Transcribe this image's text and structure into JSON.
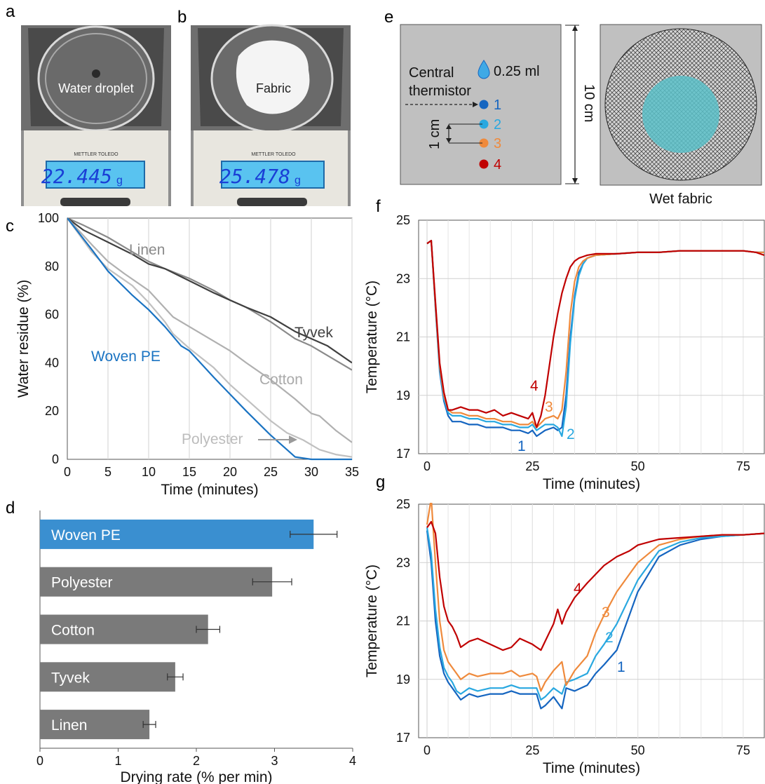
{
  "panels": {
    "a": {
      "label": "a",
      "photo_text": "Water droplet",
      "display": "22.445",
      "unit": "g",
      "brand": "METTLER TOLEDO"
    },
    "b": {
      "label": "b",
      "photo_text": "Fabric",
      "display": "25.478",
      "unit": "g",
      "brand": "METTLER TOLEDO"
    },
    "e": {
      "label": "e",
      "volume": "0.25 ml",
      "central_line1": "Central",
      "central_line2": "thermistor",
      "spacing": "1 cm",
      "size": "10 cm",
      "wet_fabric": "Wet fabric",
      "points": [
        {
          "n": "1",
          "color": "#1565c0"
        },
        {
          "n": "2",
          "color": "#29a8e0"
        },
        {
          "n": "3",
          "color": "#ef8a3c"
        },
        {
          "n": "4",
          "color": "#c00000"
        }
      ]
    }
  },
  "colors": {
    "woven_pe": "#1a73c2",
    "s1": "#1565c0",
    "s2": "#29a8e0",
    "s3": "#ef8a3c",
    "s4": "#c00000",
    "bar": "#7a7a7a",
    "photo_bg": "#bdbdbd"
  },
  "chart_data": [
    {
      "panel": "c",
      "type": "line",
      "xlabel": "Time (minutes)",
      "ylabel": "Water residue (%)",
      "xlim": [
        0,
        35
      ],
      "ylim": [
        0,
        100
      ],
      "xticks": [
        0,
        5,
        10,
        15,
        20,
        25,
        30,
        35
      ],
      "yticks": [
        0,
        20,
        40,
        60,
        80,
        100
      ],
      "grid": "vertical",
      "series": [
        {
          "name": "Linen",
          "color": "#8a8a8a",
          "x": [
            0,
            2,
            5,
            8,
            10,
            12,
            15,
            18,
            20,
            22,
            25,
            28,
            30,
            32,
            35
          ],
          "y": [
            100,
            97,
            92,
            86,
            82,
            79,
            75,
            70,
            66,
            63,
            57,
            50,
            47,
            43,
            37
          ]
        },
        {
          "name": "Tyvek",
          "color": "#404040",
          "x": [
            0,
            2,
            5,
            8,
            10,
            12,
            15,
            18,
            20,
            22,
            25,
            28,
            30,
            32,
            35
          ],
          "y": [
            100,
            95,
            90,
            85,
            81,
            79,
            74,
            69,
            66,
            63,
            59,
            53,
            50,
            47,
            40
          ]
        },
        {
          "name": "Cotton",
          "color": "#b0b0b0",
          "x": [
            0,
            3,
            5,
            7,
            10,
            13,
            15,
            18,
            20,
            22,
            25,
            28,
            30,
            31,
            33,
            35
          ],
          "y": [
            100,
            89,
            82,
            77,
            70,
            59,
            55,
            49,
            45,
            40,
            33,
            25,
            19,
            18,
            12,
            7
          ]
        },
        {
          "name": "Polyester",
          "color": "#c0c0c0",
          "x": [
            0,
            3,
            5,
            8,
            10,
            12,
            13,
            15,
            18,
            20,
            23,
            25,
            27,
            29,
            31,
            33,
            35
          ],
          "y": [
            100,
            86,
            79,
            72,
            65,
            57,
            52,
            46,
            38,
            31,
            22,
            16,
            11,
            8,
            4,
            2,
            1
          ]
        },
        {
          "name": "Woven PE",
          "color": "#1a73c2",
          "x": [
            0,
            3,
            5,
            8,
            10,
            12,
            14,
            15,
            18,
            20,
            22,
            25,
            27,
            28,
            30,
            35
          ],
          "y": [
            100,
            87,
            78,
            68,
            62,
            55,
            47,
            45,
            34,
            27,
            20,
            10,
            4,
            1,
            0,
            0
          ]
        }
      ],
      "annotation": "Polyester"
    },
    {
      "panel": "d",
      "type": "bar",
      "orientation": "horizontal",
      "xlabel": "Drying rate (% per min)",
      "xlim": [
        0,
        4
      ],
      "xticks": [
        0,
        1,
        2,
        3,
        4
      ],
      "categories": [
        "Woven PE",
        "Polyester",
        "Cotton",
        "Tyvek",
        "Linen"
      ],
      "values": [
        3.5,
        2.97,
        2.15,
        1.73,
        1.4
      ],
      "errors": [
        0.3,
        0.25,
        0.15,
        0.1,
        0.08
      ],
      "colors": [
        "#3a8fd0",
        "#7a7a7a",
        "#7a7a7a",
        "#7a7a7a",
        "#7a7a7a"
      ]
    },
    {
      "panel": "f",
      "type": "line",
      "xlabel": "Time (minutes)",
      "ylabel": "Temperature (°C)",
      "xlim": [
        -2,
        80
      ],
      "ylim": [
        17,
        25
      ],
      "xticks": [
        0,
        25,
        50,
        75
      ],
      "yticks": [
        17,
        19,
        21,
        23,
        25
      ],
      "grid": "both",
      "series": [
        {
          "name": "1",
          "color": "#1565c0",
          "x": [
            0,
            1,
            2,
            3,
            4,
            5,
            6,
            8,
            10,
            12,
            14,
            16,
            18,
            20,
            22,
            24,
            25,
            26,
            28,
            30,
            31,
            32,
            33,
            34,
            35,
            36,
            37,
            38,
            40,
            45,
            50,
            55,
            60,
            65,
            70,
            75,
            78,
            80
          ],
          "y": [
            24.2,
            24.3,
            22.0,
            19.8,
            18.8,
            18.3,
            18.1,
            18.1,
            18.0,
            18.0,
            17.9,
            17.9,
            17.9,
            17.8,
            17.8,
            17.7,
            17.8,
            17.6,
            17.8,
            17.9,
            17.8,
            17.9,
            19.0,
            21.0,
            22.4,
            23.2,
            23.5,
            23.7,
            23.8,
            23.85,
            23.9,
            23.9,
            23.95,
            23.95,
            23.95,
            23.95,
            23.9,
            23.9
          ]
        },
        {
          "name": "2",
          "color": "#29a8e0",
          "x": [
            0,
            1,
            2,
            3,
            4,
            5,
            6,
            8,
            10,
            12,
            14,
            16,
            18,
            20,
            22,
            24,
            25,
            26,
            28,
            30,
            31,
            32,
            33,
            34,
            35,
            36,
            37,
            38,
            40,
            45,
            50,
            55,
            60,
            65,
            70,
            75,
            78,
            80
          ],
          "y": [
            24.2,
            24.3,
            22.1,
            19.9,
            18.9,
            18.4,
            18.3,
            18.3,
            18.2,
            18.2,
            18.1,
            18.1,
            18.0,
            18.0,
            17.9,
            17.9,
            18.0,
            17.8,
            18.0,
            18.0,
            17.9,
            17.6,
            18.6,
            20.8,
            22.3,
            23.1,
            23.5,
            23.7,
            23.8,
            23.85,
            23.9,
            23.9,
            23.95,
            23.95,
            23.95,
            23.95,
            23.9,
            23.9
          ]
        },
        {
          "name": "3",
          "color": "#ef8a3c",
          "x": [
            0,
            1,
            2,
            3,
            4,
            5,
            6,
            8,
            10,
            12,
            14,
            16,
            18,
            20,
            22,
            24,
            25,
            26,
            28,
            30,
            31,
            32,
            33,
            34,
            35,
            36,
            37,
            38,
            40,
            45,
            50,
            55,
            60,
            65,
            70,
            75,
            78,
            80
          ],
          "y": [
            24.2,
            24.3,
            22.1,
            20.0,
            19.0,
            18.5,
            18.4,
            18.4,
            18.3,
            18.3,
            18.2,
            18.2,
            18.1,
            18.1,
            18.0,
            18.0,
            18.1,
            17.9,
            18.2,
            18.3,
            18.2,
            18.5,
            19.8,
            21.8,
            22.9,
            23.4,
            23.6,
            23.7,
            23.8,
            23.85,
            23.9,
            23.9,
            23.95,
            23.95,
            23.95,
            23.95,
            23.9,
            23.9
          ]
        },
        {
          "name": "4",
          "color": "#c00000",
          "x": [
            0,
            1,
            2,
            3,
            4,
            5,
            6,
            8,
            10,
            12,
            14,
            16,
            18,
            20,
            22,
            24,
            25,
            26,
            27,
            28,
            29,
            30,
            31,
            32,
            33,
            34,
            35,
            36,
            37,
            38,
            40,
            45,
            50,
            55,
            60,
            65,
            70,
            75,
            78,
            80
          ],
          "y": [
            24.2,
            24.3,
            22.2,
            20.1,
            19.1,
            18.5,
            18.5,
            18.6,
            18.5,
            18.5,
            18.4,
            18.5,
            18.3,
            18.4,
            18.3,
            18.2,
            18.4,
            17.9,
            18.3,
            19.0,
            20.0,
            21.0,
            21.8,
            22.5,
            23.0,
            23.4,
            23.6,
            23.7,
            23.75,
            23.8,
            23.85,
            23.85,
            23.9,
            23.9,
            23.95,
            23.95,
            23.95,
            23.95,
            23.9,
            23.8
          ]
        }
      ]
    },
    {
      "panel": "g",
      "type": "line",
      "xlabel": "Time (minutes)",
      "ylabel": "Temperature (°C)",
      "xlim": [
        -2,
        80
      ],
      "ylim": [
        17,
        25
      ],
      "xticks": [
        0,
        25,
        50,
        75
      ],
      "yticks": [
        17,
        19,
        21,
        23,
        25
      ],
      "grid": "both",
      "series": [
        {
          "name": "1",
          "color": "#1565c0",
          "x": [
            0,
            1,
            2,
            3,
            4,
            5,
            6,
            7,
            8,
            10,
            12,
            15,
            18,
            20,
            22,
            25,
            26,
            27,
            28,
            30,
            32,
            33,
            35,
            38,
            40,
            42,
            45,
            48,
            50,
            55,
            60,
            65,
            70,
            75,
            80
          ],
          "y": [
            24.1,
            23.0,
            21.0,
            19.8,
            19.2,
            18.9,
            18.7,
            18.5,
            18.3,
            18.5,
            18.4,
            18.5,
            18.5,
            18.6,
            18.5,
            18.5,
            18.5,
            18.0,
            18.1,
            18.4,
            18.0,
            18.7,
            18.6,
            18.8,
            19.2,
            19.5,
            20.0,
            21.2,
            22.0,
            23.2,
            23.6,
            23.8,
            23.9,
            23.95,
            24.0
          ]
        },
        {
          "name": "2",
          "color": "#29a8e0",
          "x": [
            0,
            1,
            2,
            3,
            4,
            5,
            6,
            7,
            8,
            10,
            12,
            15,
            18,
            20,
            22,
            25,
            26,
            27,
            28,
            30,
            32,
            33,
            35,
            38,
            40,
            42,
            45,
            48,
            50,
            55,
            60,
            65,
            70,
            75,
            80
          ],
          "y": [
            24.2,
            23.3,
            21.4,
            20.1,
            19.4,
            19.1,
            18.9,
            18.6,
            18.5,
            18.7,
            18.6,
            18.7,
            18.7,
            18.8,
            18.7,
            18.7,
            18.7,
            18.3,
            18.4,
            18.7,
            18.5,
            18.9,
            19.0,
            19.2,
            19.8,
            20.2,
            20.9,
            21.8,
            22.4,
            23.4,
            23.7,
            23.85,
            23.9,
            23.95,
            24.0
          ]
        },
        {
          "name": "3",
          "color": "#ef8a3c",
          "x": [
            0,
            1,
            2,
            3,
            4,
            5,
            6,
            7,
            8,
            10,
            12,
            15,
            18,
            20,
            22,
            25,
            26,
            27,
            28,
            30,
            32,
            33,
            35,
            38,
            40,
            42,
            45,
            48,
            50,
            55,
            60,
            65,
            70,
            75,
            80
          ],
          "y": [
            24.3,
            25.2,
            23.0,
            21.0,
            20.0,
            19.6,
            19.4,
            19.2,
            19.0,
            19.2,
            19.1,
            19.2,
            19.2,
            19.3,
            19.1,
            19.2,
            19.1,
            18.6,
            18.9,
            19.3,
            19.6,
            18.8,
            19.3,
            19.8,
            20.6,
            21.2,
            22.0,
            22.6,
            23.0,
            23.6,
            23.8,
            23.9,
            23.95,
            23.95,
            24.0
          ]
        },
        {
          "name": "4",
          "color": "#c00000",
          "x": [
            0,
            1,
            2,
            3,
            4,
            5,
            6,
            7,
            8,
            10,
            12,
            15,
            18,
            20,
            22,
            25,
            26,
            27,
            28,
            30,
            31,
            32,
            33,
            35,
            38,
            40,
            42,
            45,
            48,
            50,
            55,
            60,
            65,
            70,
            75,
            80
          ],
          "y": [
            24.2,
            24.4,
            24.0,
            22.5,
            21.5,
            21.0,
            20.8,
            20.5,
            20.1,
            20.3,
            20.4,
            20.2,
            20.0,
            20.1,
            20.4,
            20.2,
            20.1,
            20.0,
            20.3,
            20.9,
            21.4,
            20.9,
            21.3,
            21.8,
            22.3,
            22.6,
            22.9,
            23.2,
            23.4,
            23.6,
            23.8,
            23.85,
            23.9,
            23.95,
            23.95,
            24.0
          ]
        }
      ]
    }
  ]
}
